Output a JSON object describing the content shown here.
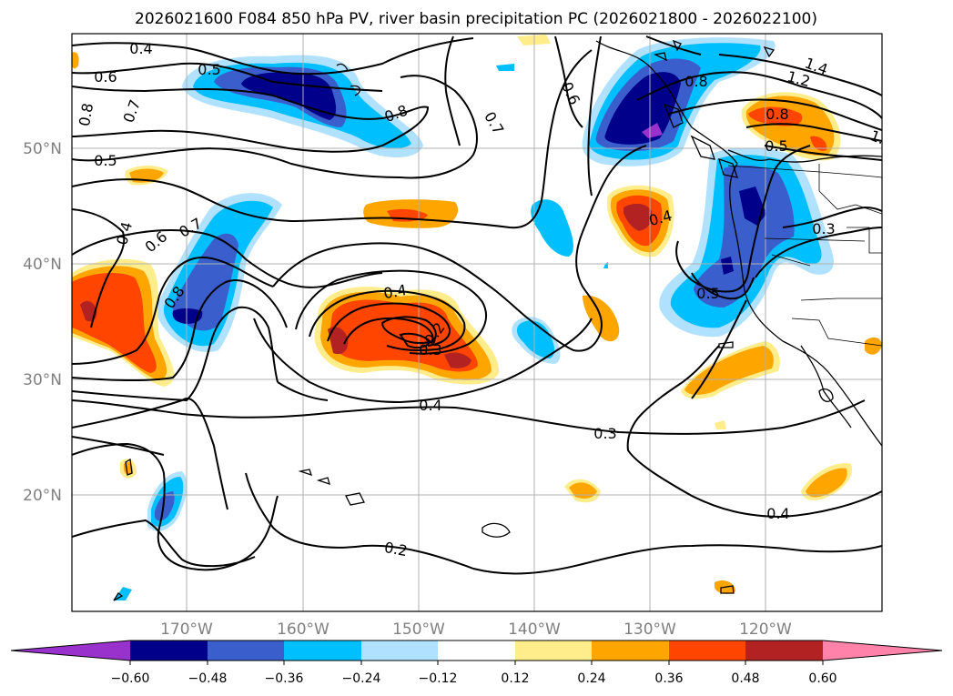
{
  "title": "2026021600 F084 850 hPa PV, river basin precipitation PC (2026021800 - 2026022100)",
  "latitude_labels": [
    "50°N",
    "40°N",
    "30°N",
    "20°N"
  ],
  "longitude_labels": [
    "170°W",
    "160°W",
    "150°W",
    "140°W",
    "130°W",
    "120°W"
  ],
  "colorbar": {
    "ticks": [
      "−0.60",
      "−0.48",
      "−0.36",
      "−0.24",
      "−0.12",
      "0.12",
      "0.24",
      "0.36",
      "0.48",
      "0.60"
    ],
    "colors": [
      "#9932cc",
      "#00008b",
      "#3a5fcd",
      "#00bfff",
      "#b0e2ff",
      "#ffffff",
      "#ffec8b",
      "#ffa500",
      "#ff4500",
      "#b22222",
      "#ff82ab"
    ]
  },
  "contour_labels": [
    "0.4",
    "0.6",
    "0.8",
    "0.5",
    "0.4",
    "0.6",
    "0.7",
    "0.8",
    "0.5",
    "0.8",
    "0.7",
    "0.6",
    "0.8",
    "1.2",
    "1.4",
    "0.8",
    "0.5",
    "1.",
    "0.4",
    "0.3",
    "0.5",
    "0.4",
    "0.2",
    "0.3",
    "0.4",
    "0.3",
    "0.4",
    "0.2",
    "0.7"
  ]
}
